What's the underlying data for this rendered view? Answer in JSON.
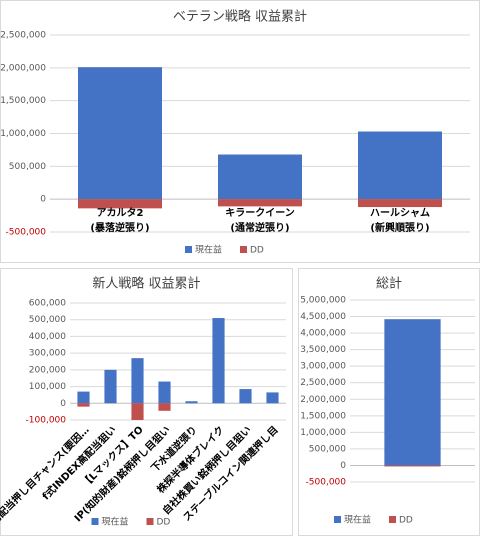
{
  "chart_data": [
    {
      "type": "bar",
      "title": "ベテラン戦略 収益累計",
      "categories": [
        [
          "アカルタ2",
          "(暴落逆張り)"
        ],
        [
          "キラークイーン",
          "(通常逆張り)"
        ],
        [
          "ハールシャム",
          "(新興順張り)"
        ]
      ],
      "series": [
        {
          "name": "現在益",
          "color": "#4472c4",
          "values": [
            2010000,
            680000,
            1030000
          ]
        },
        {
          "name": "DD",
          "color": "#c0504d",
          "values": [
            -140000,
            -110000,
            -120000
          ]
        }
      ],
      "ylim": [
        -500000,
        2500000
      ],
      "yticks": [
        {
          "value": -500000,
          "label": "-500,000"
        },
        0,
        {
          "value": 500000,
          "label": "500,000"
        },
        {
          "value": 1000000,
          "label": "1,000,000"
        },
        {
          "value": 1500000,
          "label": "1,500,000"
        },
        {
          "value": 2000000,
          "label": "2,000,000"
        },
        {
          "value": 2500000,
          "label": "2,500,000"
        }
      ],
      "grid": true,
      "legend": "bottom"
    },
    {
      "type": "bar",
      "title": "新人戦略 収益累計",
      "categories": [
        "高配当押し目チャンス(要因…",
        "f式INDEX高配当狙い",
        "【Lマックス】TO",
        "IP(知的財産)銘柄押し目狙い",
        "下水道逆張り",
        "株探半導体ブレイク",
        "自社株買い銘柄押し目狙い",
        "ステーブルコイン関連押し目"
      ],
      "series": [
        {
          "name": "現在益",
          "color": "#4472c4",
          "values": [
            70000,
            200000,
            270000,
            130000,
            12000,
            510000,
            85000,
            65000
          ]
        },
        {
          "name": "DD",
          "color": "#c0504d",
          "values": [
            -20000,
            0,
            -100000,
            -45000,
            0,
            0,
            0,
            0
          ]
        }
      ],
      "ylim": [
        -100000,
        600000
      ],
      "yticks": [
        {
          "value": -100000,
          "label": "-100,000"
        },
        0,
        {
          "value": 100000,
          "label": "100,000"
        },
        {
          "value": 200000,
          "label": "200,000"
        },
        {
          "value": 300000,
          "label": "300,000"
        },
        {
          "value": 400000,
          "label": "400,000"
        },
        {
          "value": 500000,
          "label": "500,000"
        },
        {
          "value": 600000,
          "label": "600,000"
        }
      ],
      "grid": true,
      "legend": "bottom"
    },
    {
      "type": "bar",
      "title": "総計",
      "categories": [
        null
      ],
      "series": [
        {
          "name": "現在益",
          "color": "#4472c4",
          "values": [
            4420000
          ]
        },
        {
          "name": "DD",
          "color": "#c0504d",
          "values": [
            -30000
          ]
        }
      ],
      "ylim": [
        -500000,
        5000000
      ],
      "yticks": [
        {
          "value": -500000,
          "label": "-500,000"
        },
        0,
        {
          "value": 500000,
          "label": "500,000"
        },
        {
          "value": 1000000,
          "label": "1,000,000"
        },
        {
          "value": 1500000,
          "label": "1,500,000"
        },
        {
          "value": 2000000,
          "label": "2,000,000"
        },
        {
          "value": 2500000,
          "label": "2,500,000"
        },
        {
          "value": 3000000,
          "label": "3,000,000"
        },
        {
          "value": 3500000,
          "label": "3,500,000"
        },
        {
          "value": 4000000,
          "label": "4,000,000"
        },
        {
          "value": 4500000,
          "label": "4,500,000"
        },
        {
          "value": 5000000,
          "label": "5,000,000"
        }
      ],
      "grid": true,
      "legend": "bottom"
    }
  ]
}
